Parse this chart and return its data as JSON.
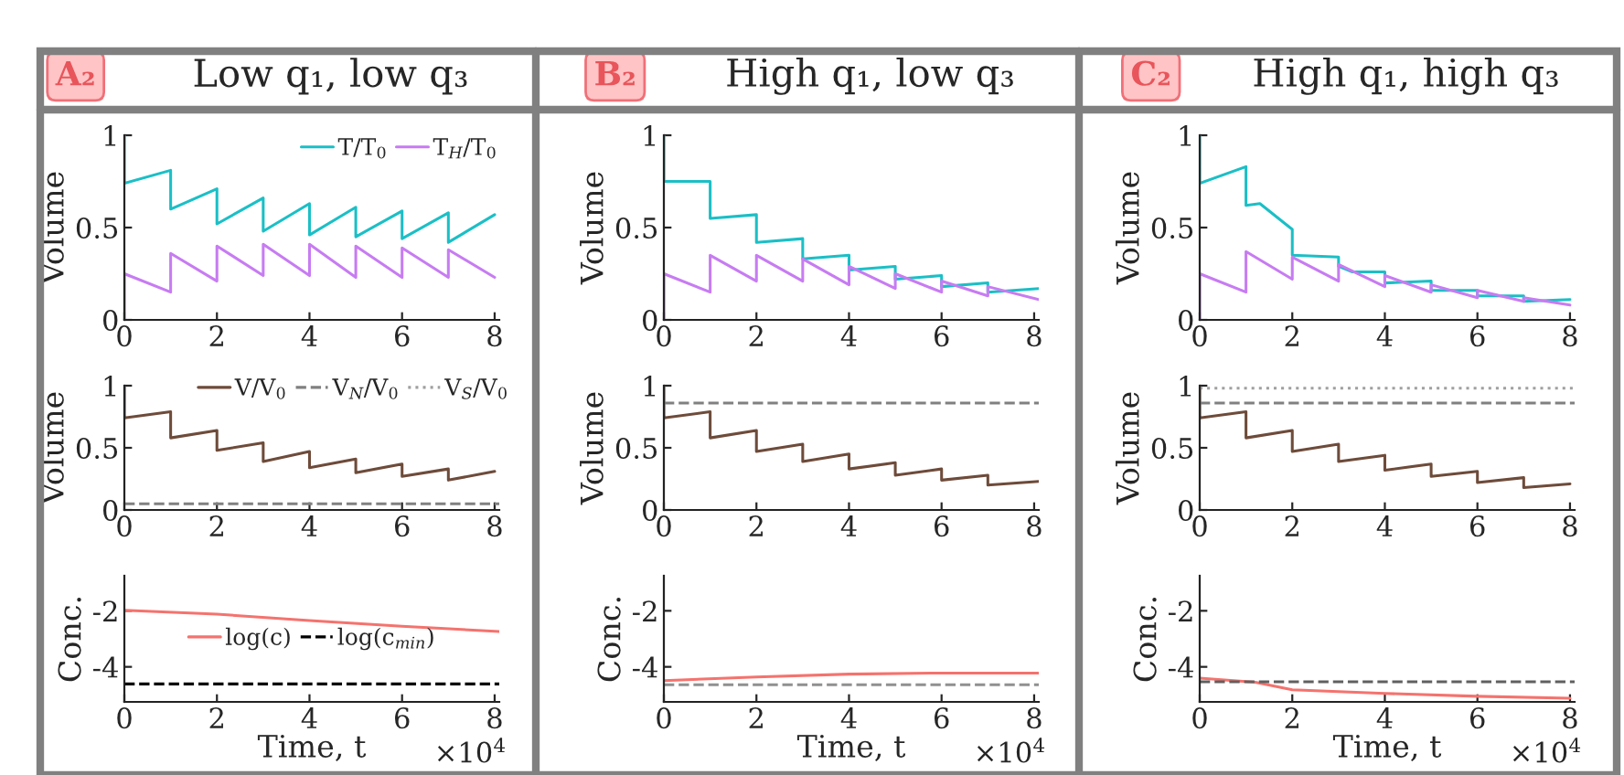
{
  "chart_data": [
    {
      "type": "line",
      "title": "Low q₁, low q₃",
      "annotations": [
        "A₂"
      ],
      "ylabel": "Volume",
      "xlim": [
        0,
        8.1
      ],
      "xticks": [
        0,
        2,
        4,
        6,
        8
      ],
      "ylim": [
        0,
        1
      ],
      "yticks": [
        0,
        0.5,
        1
      ],
      "legend": "top right",
      "series": [
        {
          "name": "T/T$_{0}$",
          "color": "#1bbfc6",
          "line_style": "solid",
          "x": [
            0,
            0,
            1,
            1,
            2,
            2,
            3,
            3,
            4,
            4,
            5,
            5,
            6,
            6,
            7,
            7,
            8
          ],
          "values": [
            1,
            0.74,
            0.81,
            0.6,
            0.71,
            0.52,
            0.66,
            0.48,
            0.63,
            0.46,
            0.61,
            0.45,
            0.59,
            0.44,
            0.58,
            0.42,
            0.57
          ]
        },
        {
          "name": "T$_{H}$/T$_{0}$",
          "color": "#c77cf2",
          "line_style": "solid",
          "x": [
            0,
            0,
            1,
            1,
            2,
            2,
            3,
            3,
            4,
            4,
            5,
            5,
            6,
            6,
            7,
            7,
            8
          ],
          "values": [
            0,
            0.25,
            0.15,
            0.36,
            0.21,
            0.4,
            0.24,
            0.41,
            0.24,
            0.41,
            0.23,
            0.4,
            0.23,
            0.39,
            0.23,
            0.38,
            0.23
          ]
        }
      ]
    },
    {
      "type": "line",
      "title": "High q₁, low q₃",
      "annotations": [
        "B₂"
      ],
      "ylabel": "Volume",
      "xlim": [
        0,
        8.1
      ],
      "xticks": [
        0,
        2,
        4,
        6,
        8
      ],
      "ylim": [
        0,
        1
      ],
      "yticks": [
        0,
        0.5,
        1
      ],
      "series": [
        {
          "color": "#1bbfc6",
          "line_style": "solid",
          "x": [
            0,
            0,
            1,
            1,
            2,
            2,
            3,
            3,
            4,
            4,
            5,
            5,
            6,
            6,
            7,
            7,
            8.1
          ],
          "values": [
            1,
            0.75,
            0.75,
            0.55,
            0.57,
            0.42,
            0.44,
            0.33,
            0.35,
            0.27,
            0.29,
            0.22,
            0.24,
            0.18,
            0.2,
            0.15,
            0.17
          ]
        },
        {
          "color": "#c77cf2",
          "line_style": "solid",
          "x": [
            0,
            0,
            1,
            1,
            2,
            2,
            3,
            3,
            4,
            4,
            5,
            5,
            6,
            6,
            7,
            7,
            8.1
          ],
          "values": [
            0,
            0.25,
            0.15,
            0.35,
            0.21,
            0.35,
            0.21,
            0.33,
            0.19,
            0.29,
            0.17,
            0.25,
            0.15,
            0.21,
            0.13,
            0.18,
            0.11
          ]
        }
      ]
    },
    {
      "type": "line",
      "title": "High q₁, high q₃",
      "annotations": [
        "C₂"
      ],
      "ylabel": "Volume",
      "xlim": [
        0,
        8.1
      ],
      "xticks": [
        0,
        2,
        4,
        6,
        8
      ],
      "ylim": [
        0,
        1
      ],
      "yticks": [
        0,
        0.5,
        1
      ],
      "series": [
        {
          "color": "#1bbfc6",
          "line_style": "solid",
          "x": [
            0,
            0,
            1,
            1,
            1.3,
            2,
            2,
            3,
            3,
            3.3,
            4,
            4,
            5,
            5,
            6,
            6,
            7,
            7,
            8
          ],
          "values": [
            1,
            0.74,
            0.83,
            0.62,
            0.63,
            0.49,
            0.35,
            0.34,
            0.29,
            0.26,
            0.26,
            0.2,
            0.21,
            0.16,
            0.16,
            0.13,
            0.13,
            0.1,
            0.11
          ]
        },
        {
          "color": "#c77cf2",
          "line_style": "solid",
          "x": [
            0,
            0,
            1,
            1,
            2,
            2,
            3,
            3,
            4,
            4,
            5,
            5,
            6,
            6,
            7,
            7,
            8
          ],
          "values": [
            0,
            0.25,
            0.15,
            0.37,
            0.22,
            0.34,
            0.21,
            0.3,
            0.18,
            0.24,
            0.15,
            0.19,
            0.12,
            0.16,
            0.1,
            0.12,
            0.08
          ]
        }
      ]
    },
    {
      "type": "line",
      "ylabel": "Volume",
      "xlim": [
        0,
        8.1
      ],
      "xticks": [
        0,
        2,
        4,
        6,
        8
      ],
      "ylim": [
        0,
        1
      ],
      "yticks": [
        0,
        0.5,
        1
      ],
      "legend": "top right",
      "series": [
        {
          "name": "V/V$_{0}$",
          "color": "#6e4b3a",
          "line_style": "solid",
          "x": [
            0,
            0,
            1,
            1,
            2,
            2,
            3,
            3,
            4,
            4,
            5,
            5,
            6,
            6,
            7,
            7,
            8
          ],
          "values": [
            1,
            0.74,
            0.79,
            0.58,
            0.64,
            0.48,
            0.54,
            0.39,
            0.47,
            0.34,
            0.41,
            0.3,
            0.37,
            0.27,
            0.33,
            0.24,
            0.31
          ]
        },
        {
          "name": "V$_{N}$/V$_{0}$",
          "color": "#808080",
          "line_style": "dashed",
          "x": [
            0,
            8.1
          ],
          "values": [
            0.05,
            0.05
          ]
        },
        {
          "name": "V$_{S}$/V$_{0}$",
          "color": "#a0a0a0",
          "line_style": "dotted"
        }
      ]
    },
    {
      "type": "line",
      "ylabel": "Volume",
      "xlim": [
        0,
        8.1
      ],
      "xticks": [
        0,
        2,
        4,
        6,
        8
      ],
      "ylim": [
        0,
        1
      ],
      "yticks": [
        0,
        0.5,
        1
      ],
      "series": [
        {
          "color": "#6e4b3a",
          "line_style": "solid",
          "x": [
            0,
            0,
            1,
            1,
            2,
            2,
            3,
            3,
            4,
            4,
            5,
            5,
            6,
            6,
            7,
            7,
            8.1
          ],
          "values": [
            1,
            0.74,
            0.79,
            0.58,
            0.64,
            0.47,
            0.53,
            0.39,
            0.45,
            0.33,
            0.38,
            0.28,
            0.33,
            0.24,
            0.28,
            0.2,
            0.23
          ]
        },
        {
          "color": "#808080",
          "line_style": "dashed",
          "x": [
            0,
            8.1
          ],
          "values": [
            0.86,
            0.86
          ]
        }
      ]
    },
    {
      "type": "line",
      "ylabel": "Volume",
      "xlim": [
        0,
        8.1
      ],
      "xticks": [
        0,
        2,
        4,
        6,
        8
      ],
      "ylim": [
        0,
        1
      ],
      "yticks": [
        0,
        0.5,
        1
      ],
      "series": [
        {
          "color": "#6e4b3a",
          "line_style": "solid",
          "x": [
            0,
            0,
            1,
            1,
            2,
            2,
            3,
            3,
            4,
            4,
            5,
            5,
            6,
            6,
            7,
            7,
            8
          ],
          "values": [
            1,
            0.74,
            0.79,
            0.58,
            0.64,
            0.47,
            0.53,
            0.39,
            0.44,
            0.32,
            0.37,
            0.27,
            0.31,
            0.22,
            0.26,
            0.18,
            0.21
          ]
        },
        {
          "color": "#808080",
          "line_style": "dashed",
          "x": [
            0,
            8.1
          ],
          "values": [
            0.86,
            0.86
          ]
        },
        {
          "color": "#a0a0a0",
          "line_style": "dotted",
          "x": [
            0,
            8.1
          ],
          "values": [
            0.98,
            0.98
          ]
        }
      ]
    },
    {
      "type": "line",
      "annotations": [
        "×10$^{4}$"
      ],
      "xlabel": "Time, t",
      "ylabel": "Conc.",
      "xlim": [
        0,
        8.1
      ],
      "xticks": [
        0,
        2,
        4,
        6,
        8
      ],
      "ylim": [
        -5.25,
        -0.75
      ],
      "yticks": [
        -4,
        -2
      ],
      "legend": "center",
      "series": [
        {
          "name": "log(c)",
          "color": "#f4736e",
          "line_style": "solid",
          "x": [
            0,
            2,
            4,
            6,
            8.1
          ],
          "values": [
            -1.98,
            -2.12,
            -2.35,
            -2.55,
            -2.74
          ]
        },
        {
          "name": "log(c$_{min}$)",
          "color": "#000000",
          "line_style": "dashed",
          "x": [
            0,
            8.1
          ],
          "values": [
            -4.61,
            -4.61
          ]
        }
      ]
    },
    {
      "type": "line",
      "annotations": [
        "×10$^{4}$"
      ],
      "xlabel": "Time, t",
      "ylabel": "Conc.",
      "xlim": [
        0,
        8.1
      ],
      "xticks": [
        0,
        2,
        4,
        6,
        8
      ],
      "ylim": [
        -5.25,
        -0.75
      ],
      "yticks": [
        -4,
        -2
      ],
      "series": [
        {
          "color": "#f4736e",
          "line_style": "solid",
          "x": [
            0,
            2,
            4,
            6,
            8.1
          ],
          "values": [
            -4.49,
            -4.36,
            -4.26,
            -4.22,
            -4.22
          ]
        },
        {
          "color": "#909090",
          "line_style": "dashed",
          "x": [
            0,
            8.1
          ],
          "values": [
            -4.64,
            -4.64
          ]
        }
      ]
    },
    {
      "type": "line",
      "annotations": [
        "×10$^{4}$"
      ],
      "xlabel": "Time, t",
      "ylabel": "Conc.",
      "xlim": [
        0,
        8.1
      ],
      "xticks": [
        0,
        2,
        4,
        6,
        8
      ],
      "ylim": [
        -5.25,
        -0.75
      ],
      "yticks": [
        -4,
        -2
      ],
      "series": [
        {
          "color": "#f4736e",
          "line_style": "solid",
          "x": [
            0,
            1.2,
            2,
            4,
            6,
            8
          ],
          "values": [
            -4.4,
            -4.55,
            -4.82,
            -4.95,
            -5.05,
            -5.12
          ]
        },
        {
          "color": "#606060",
          "line_style": "dashed",
          "x": [
            0,
            8.1
          ],
          "values": [
            -4.53,
            -4.53
          ]
        }
      ]
    }
  ]
}
